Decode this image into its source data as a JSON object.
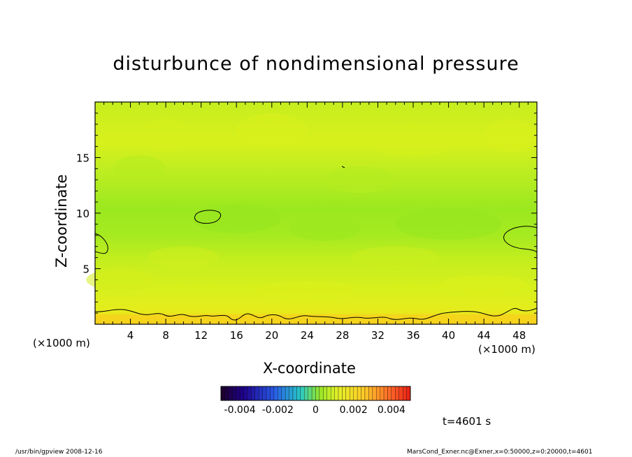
{
  "chart_data": {
    "type": "heatmap",
    "title": "disturbunce of nondimensional pressure",
    "xlabel": "X-coordinate",
    "ylabel": "Z-coordinate",
    "x_unit": "(×1000 m)",
    "y_unit": "(×1000 m)",
    "xlim": [
      0,
      50
    ],
    "ylim": [
      0,
      20
    ],
    "xticks": [
      "4",
      "8",
      "12",
      "16",
      "20",
      "24",
      "28",
      "32",
      "36",
      "40",
      "44",
      "48"
    ],
    "yticks": [
      "5",
      "10",
      "15"
    ],
    "colorbar": {
      "ticks": [
        "-0.004",
        "-0.002",
        "0",
        "0.002",
        "0.004"
      ],
      "range": [
        -0.005,
        0.005
      ]
    },
    "field_summary": {
      "background_value": 0.0005,
      "near_surface_value": 0.002,
      "mid_level_minimum": -0.0005
    },
    "colors": {
      "background": "#c8ee1f",
      "band": "#9be81f",
      "surface": "#f6d21c",
      "contour": "#000000"
    }
  },
  "annotations": {
    "time": "t=4601 s",
    "footer_left": "/usr/bin/gpview   2008-12-16",
    "footer_right": "MarsCond_Exner.nc@Exner,x=0:50000,z=0:20000,t=4601"
  }
}
